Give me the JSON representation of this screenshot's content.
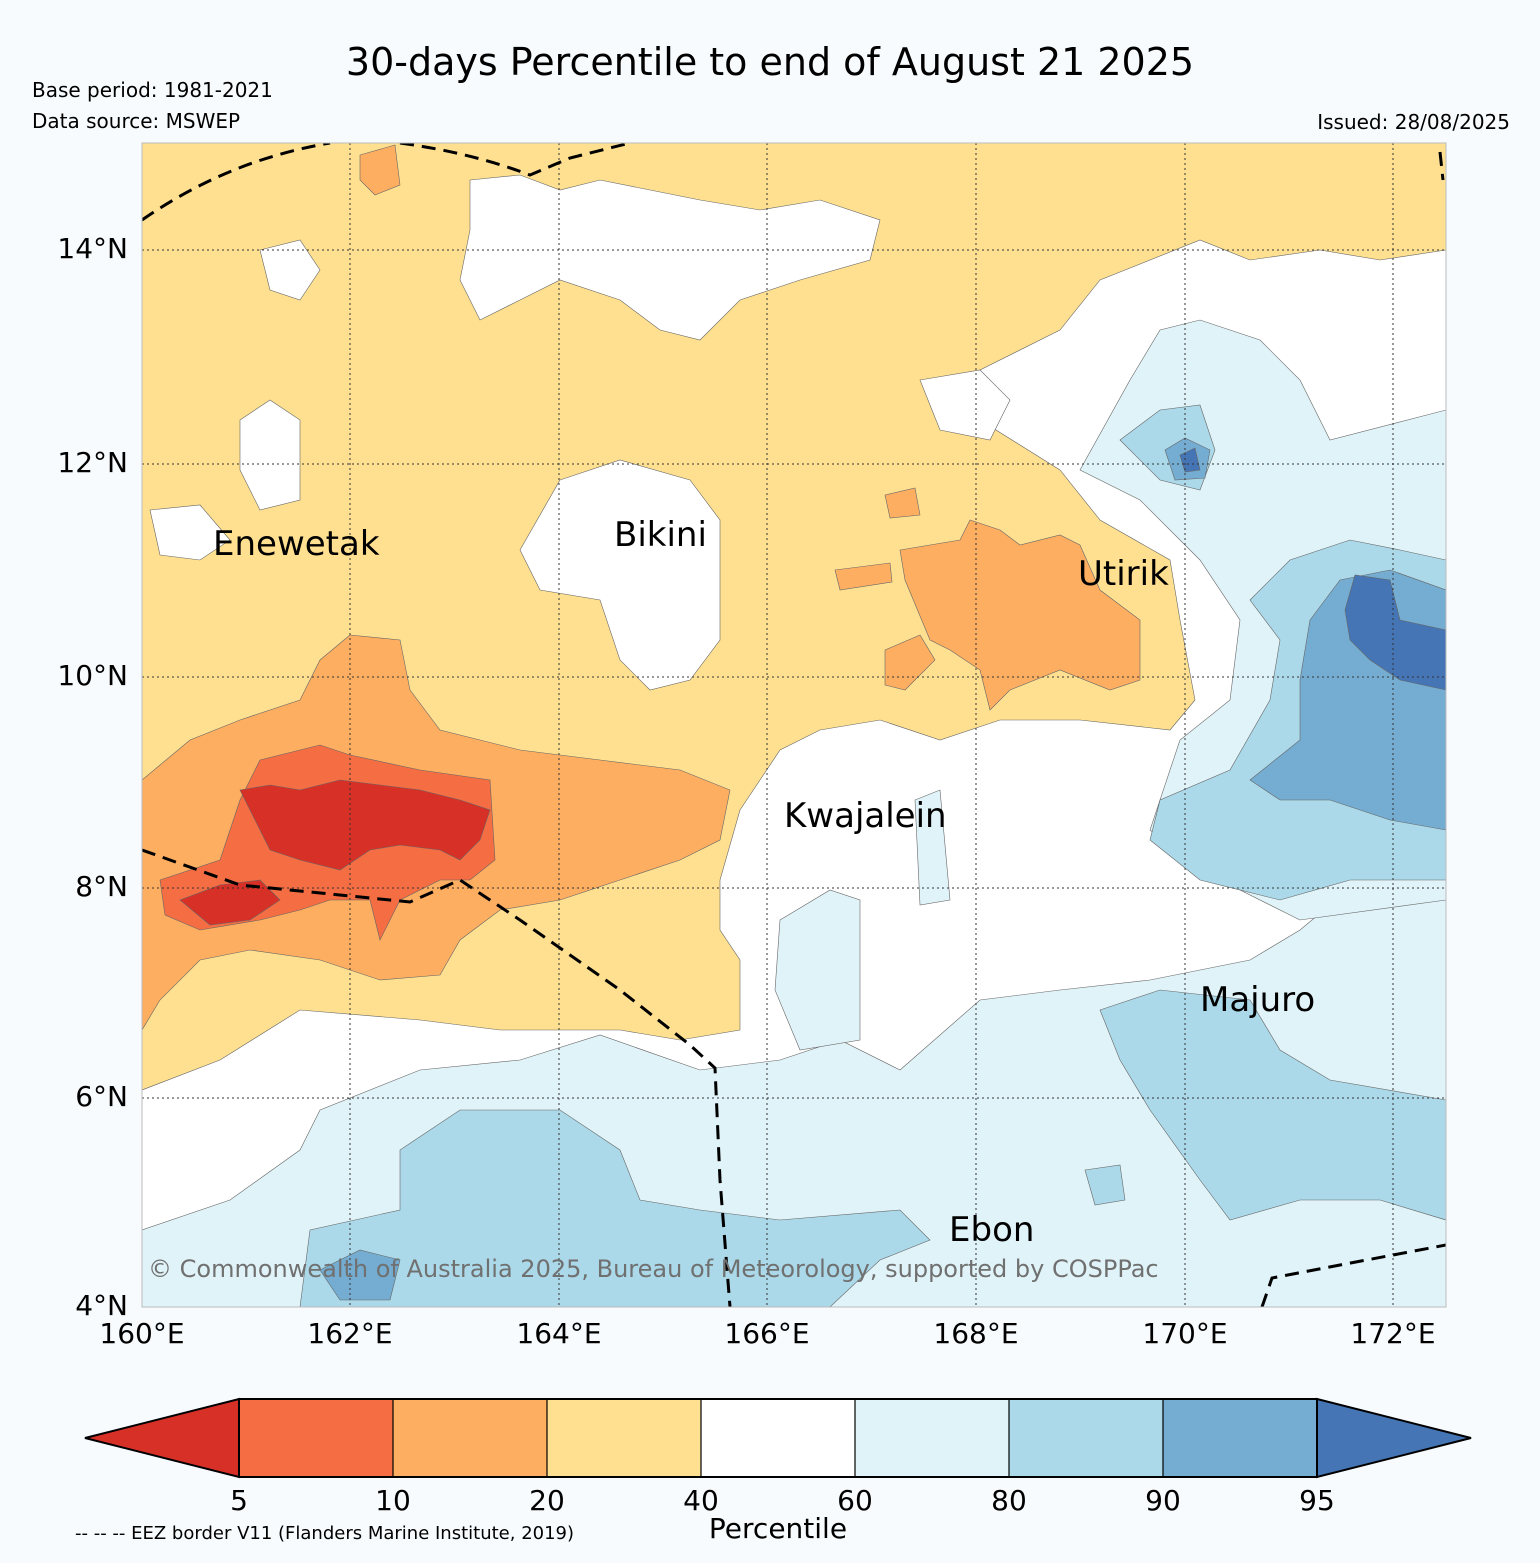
{
  "header": {
    "title": "30-days Percentile to end of August 21 2025",
    "base_period": "Base period: 1981-2021",
    "data_source": "Data source: MSWEP",
    "issued": "Issued: 28/08/2025"
  },
  "map": {
    "lat_range": [
      4,
      15
    ],
    "lon_range": [
      160,
      172.5
    ],
    "lat_ticks": [
      {
        "value": 14,
        "label": "14°N"
      },
      {
        "value": 12,
        "label": "12°N"
      },
      {
        "value": 10,
        "label": "10°N"
      },
      {
        "value": 8,
        "label": "8°N"
      },
      {
        "value": 6,
        "label": "6°N"
      },
      {
        "value": 4,
        "label": "4°N"
      }
    ],
    "lon_ticks": [
      {
        "value": 160,
        "label": "160°E"
      },
      {
        "value": 162,
        "label": "162°E"
      },
      {
        "value": 164,
        "label": "164°E"
      },
      {
        "value": 166,
        "label": "166°E"
      },
      {
        "value": 168,
        "label": "168°E"
      },
      {
        "value": 170,
        "label": "170°E"
      },
      {
        "value": 172,
        "label": "172°E"
      }
    ],
    "places": [
      {
        "name": "Enewetak"
      },
      {
        "name": "Bikini"
      },
      {
        "name": "Utirik"
      },
      {
        "name": "Kwajalein"
      },
      {
        "name": "Majuro"
      },
      {
        "name": "Ebon"
      }
    ],
    "copyright": "© Commonwealth of Australia 2025, Bureau of Meteorology, supported by COSPPac"
  },
  "colorbar": {
    "label": "Percentile",
    "boundaries": [
      "5",
      "10",
      "20",
      "40",
      "60",
      "80",
      "90",
      "95"
    ],
    "colors": [
      "#d73027",
      "#f46d43",
      "#fdae61",
      "#fee090",
      "#ffffff",
      "#e0f3f8",
      "#abd9e9",
      "#74add1",
      "#4575b4"
    ]
  },
  "legend_note": "-- -- -- EEZ border V11 (Flanders Marine Institute, 2019)"
}
